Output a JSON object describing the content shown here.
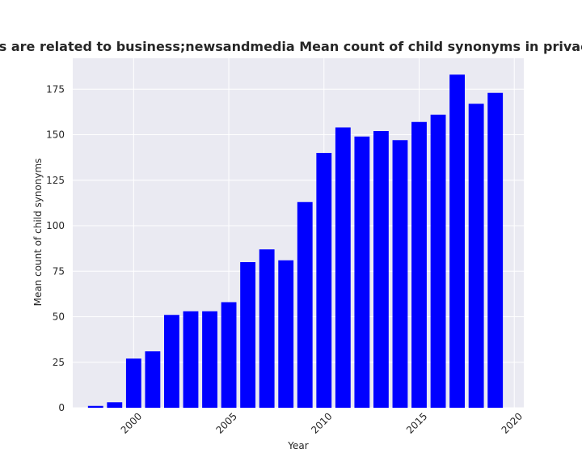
{
  "chart_data": {
    "type": "bar",
    "title": "tegories are related to business;newsandmedia Mean count of child synonyms in privacy polic",
    "xlabel": "Year",
    "ylabel": "Mean count of child synonyms",
    "x": [
      1998,
      1999,
      2000,
      2001,
      2002,
      2003,
      2004,
      2005,
      2006,
      2007,
      2008,
      2009,
      2010,
      2011,
      2012,
      2013,
      2014,
      2015,
      2016,
      2017,
      2018,
      2019
    ],
    "values": [
      1,
      3,
      27,
      31,
      51,
      53,
      53,
      58,
      80,
      87,
      81,
      113,
      140,
      154,
      149,
      152,
      147,
      157,
      161,
      183,
      167,
      173
    ],
    "xticks": [
      "2000",
      "2005",
      "2010",
      "2015",
      "2020"
    ],
    "yticks": [
      "0",
      "25",
      "50",
      "75",
      "100",
      "125",
      "150",
      "175"
    ],
    "xlim": [
      1996.8,
      2020.5
    ],
    "ylim": [
      0,
      192
    ],
    "bar_color": "#0000ff",
    "plot_background": "#eaeaf2",
    "grid": true,
    "legend": false
  }
}
